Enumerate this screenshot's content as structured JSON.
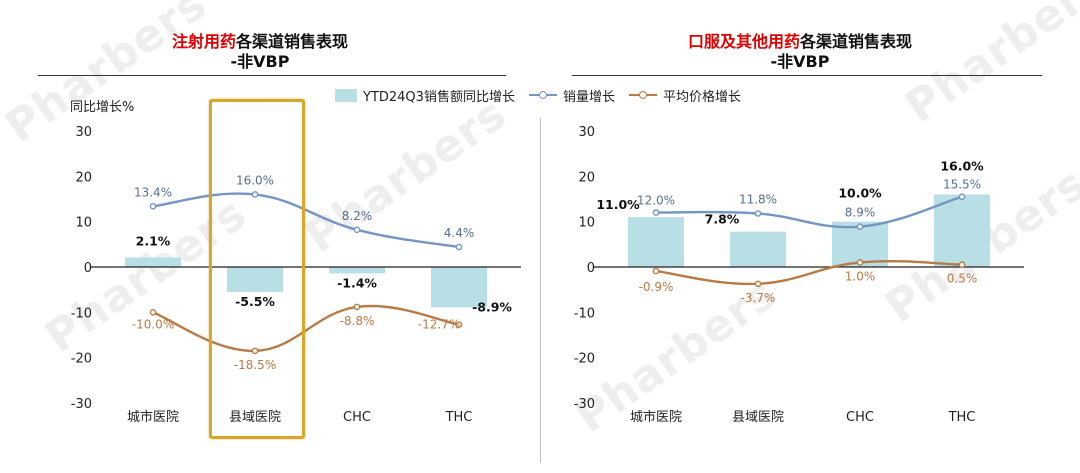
{
  "watermark": "Pharbers",
  "colors": {
    "bar": "#b9dfe6",
    "volume_line": "#7396c4",
    "price_line": "#b97a45",
    "zero_axis": "#222222",
    "label_blue": "#5a6f8f",
    "label_brown": "#b97a45",
    "label_bold": "#111111",
    "highlight": "#d8a728"
  },
  "legend": {
    "bar_label": "YTD24Q3销售额同比增长",
    "volume_label": "销量增长",
    "price_label": "平均价格增长"
  },
  "left_y_unit": "同比增长%",
  "chart_data": [
    {
      "type": "bar",
      "title_red": "注射用药",
      "title_rest": "各渠道销售表现",
      "subtitle": "-非VBP",
      "categories": [
        "城市医院",
        "县域医院",
        "CHC",
        "THC"
      ],
      "ylim": [
        -30,
        30
      ],
      "yticks": [
        30,
        20,
        10,
        0,
        -10,
        -20,
        -30
      ],
      "series": [
        {
          "name": "YTD24Q3销售额同比增长",
          "kind": "bar",
          "values": [
            2.1,
            -5.5,
            -1.4,
            -8.9
          ],
          "labels": [
            "2.1%",
            "-5.5%",
            "-1.4%",
            "-8.9%"
          ]
        },
        {
          "name": "销量增长",
          "kind": "line",
          "values": [
            13.4,
            16.0,
            8.2,
            4.4
          ],
          "labels": [
            "13.4%",
            "16.0%",
            "8.2%",
            "4.4%"
          ]
        },
        {
          "name": "平均价格增长",
          "kind": "line",
          "values": [
            -10.0,
            -18.5,
            -8.8,
            -12.7
          ],
          "labels": [
            "-10.0%",
            "-18.5%",
            "-8.8%",
            "-12.7%"
          ]
        }
      ],
      "highlight_category": "县域医院",
      "grid": false
    },
    {
      "type": "bar",
      "title_red": "口服及其他用药",
      "title_rest": "各渠道销售表现",
      "subtitle": "-非VBP",
      "categories": [
        "城市医院",
        "县域医院",
        "CHC",
        "THC"
      ],
      "ylim": [
        -30,
        30
      ],
      "yticks": [
        30,
        20,
        10,
        0,
        -10,
        -20,
        -30
      ],
      "series": [
        {
          "name": "YTD24Q3销售额同比增长",
          "kind": "bar",
          "values": [
            11.0,
            7.8,
            10.0,
            16.0
          ],
          "labels": [
            "11.0%",
            "7.8%",
            "10.0%",
            "16.0%"
          ]
        },
        {
          "name": "销量增长",
          "kind": "line",
          "values": [
            12.0,
            11.8,
            8.9,
            15.5
          ],
          "labels": [
            "12.0%",
            "11.8%",
            "8.9%",
            "15.5%"
          ]
        },
        {
          "name": "平均价格增长",
          "kind": "line",
          "values": [
            -0.9,
            -3.7,
            1.0,
            0.5
          ],
          "labels": [
            "-0.9%",
            "-3.7%",
            "1.0%",
            "0.5%"
          ]
        }
      ],
      "grid": false
    }
  ]
}
